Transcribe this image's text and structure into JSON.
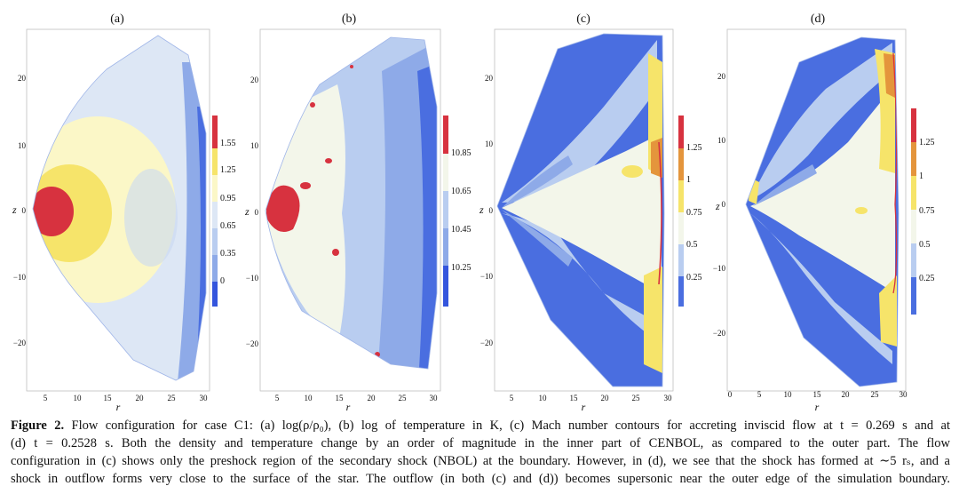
{
  "colors": {
    "red": "#d7323f",
    "yellow": "#f6e46a",
    "paleyellow": "#fbf7c7",
    "cream": "#f3f6ea",
    "pale": "#dde7f5",
    "light": "#b9cdf0",
    "mid": "#8eaae8",
    "blue": "#4a6ee0",
    "deep": "#3455dd",
    "orange": "#e4953c"
  },
  "panels": [
    {
      "title": "(a)",
      "xlabel": "r",
      "ylabel": "z",
      "xticks": [
        "5",
        "10",
        "15",
        "20",
        "25",
        "30"
      ],
      "yticks": [
        "20",
        "10",
        "0",
        "−10",
        "−20"
      ],
      "colorbar": [
        "1.55",
        "1.25",
        "0.95",
        "0.65",
        "0.35",
        "0"
      ]
    },
    {
      "title": "(b)",
      "xlabel": "r",
      "ylabel": "z",
      "xticks": [
        "5",
        "10",
        "15",
        "20",
        "25",
        "30"
      ],
      "yticks": [
        "20",
        "10",
        "0",
        "−10",
        "−20"
      ],
      "colorbar": [
        "10.85",
        "10.65",
        "10.45",
        "10.25"
      ]
    },
    {
      "title": "(c)",
      "xlabel": "r",
      "ylabel": "z",
      "xticks": [
        "5",
        "10",
        "15",
        "20",
        "25",
        "30"
      ],
      "yticks": [
        "20",
        "10",
        "0",
        "−10",
        "−20"
      ],
      "colorbar": [
        "1.25",
        "1",
        "0.75",
        "0.5",
        "0.25"
      ]
    },
    {
      "title": "(d)",
      "xlabel": "r",
      "ylabel": "z",
      "xticks": [
        "0",
        "5",
        "10",
        "15",
        "20",
        "25",
        "30"
      ],
      "yticks": [
        "20",
        "10",
        "0",
        "−10",
        "−20"
      ],
      "colorbar": [
        "1.25",
        "1",
        "0.75",
        "0.5",
        "0.25"
      ]
    }
  ],
  "caption": {
    "label": "Figure 2.",
    "lines": [
      "Flow configuration for case C1: (a) log(ρ/ρ₀), (b) log of temperature in K, (c) Mach number contours for accreting inviscid flow at t = 0.269 s and at",
      "(d) t = 0.2528 s. Both the density and temperature change by an order of magnitude in the inner part of CENBOL, as compared to the outer part. The flow",
      "configuration in (c) shows only the preshock region of the secondary shock (NBOL) at the boundary. However, in (d), we see that the shock has formed at ∼5 rₛ, and a",
      "shock in outflow forms very close to the surface of the star. The outflow (in both (c) and (d)) becomes supersonic near the outer edge of the simulation boundary."
    ]
  }
}
